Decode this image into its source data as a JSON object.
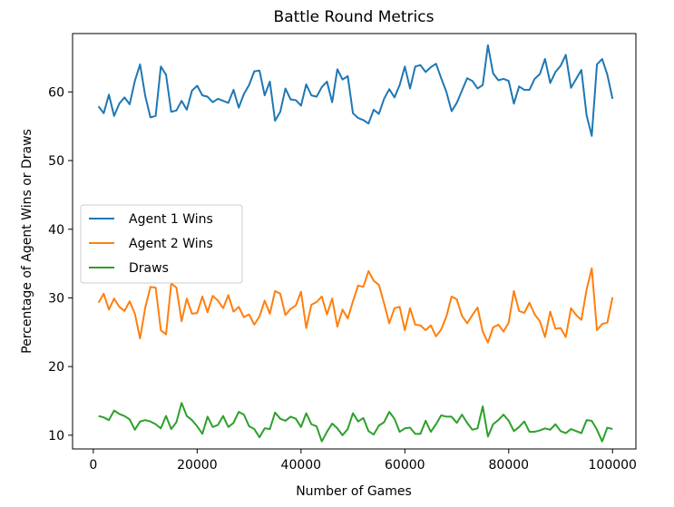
{
  "chart_data": {
    "type": "line",
    "title": "Battle Round Metrics",
    "xlabel": "Number of Games",
    "ylabel": "Percentage of Agent Wins or Draws",
    "xlim": [
      -4000,
      104500
    ],
    "ylim": [
      8,
      68.5
    ],
    "xticks": [
      0,
      20000,
      40000,
      60000,
      80000,
      100000
    ],
    "yticks": [
      10,
      20,
      30,
      40,
      50,
      60
    ],
    "grid": false,
    "legend_position": "center-left",
    "x": [
      1000,
      2000,
      3000,
      4000,
      5000,
      6000,
      7000,
      8000,
      9000,
      10000,
      11000,
      12000,
      13000,
      14000,
      15000,
      16000,
      17000,
      18000,
      19000,
      20000,
      21000,
      22000,
      23000,
      24000,
      25000,
      26000,
      27000,
      28000,
      29000,
      30000,
      31000,
      32000,
      33000,
      34000,
      35000,
      36000,
      37000,
      38000,
      39000,
      40000,
      41000,
      42000,
      43000,
      44000,
      45000,
      46000,
      47000,
      48000,
      49000,
      50000,
      51000,
      52000,
      53000,
      54000,
      55000,
      56000,
      57000,
      58000,
      59000,
      60000,
      61000,
      62000,
      63000,
      64000,
      65000,
      66000,
      67000,
      68000,
      69000,
      70000,
      71000,
      72000,
      73000,
      74000,
      75000,
      76000,
      77000,
      78000,
      79000,
      80000,
      81000,
      82000,
      83000,
      84000,
      85000,
      86000,
      87000,
      88000,
      89000,
      90000,
      91000,
      92000,
      93000,
      94000,
      95000,
      96000,
      97000,
      98000,
      99000,
      100000
    ],
    "series": [
      {
        "name": "Agent 1 Wins",
        "color": "#1f77b4",
        "values": [
          57.9,
          56.9,
          59.6,
          56.5,
          58.3,
          59.2,
          58.2,
          61.6,
          64.0,
          59.4,
          56.3,
          56.5,
          63.7,
          62.5,
          57.1,
          57.3,
          58.7,
          57.4,
          60.2,
          60.9,
          59.5,
          59.3,
          58.5,
          59.0,
          58.7,
          58.4,
          60.3,
          57.7,
          59.7,
          61.0,
          63.0,
          63.1,
          59.5,
          61.5,
          55.8,
          57.1,
          60.5,
          58.9,
          58.8,
          58.0,
          61.1,
          59.5,
          59.3,
          60.7,
          61.5,
          58.5,
          63.3,
          61.8,
          62.3,
          56.9,
          56.2,
          55.9,
          55.4,
          57.4,
          56.8,
          59.0,
          60.4,
          59.2,
          61.0,
          63.7,
          60.5,
          63.7,
          63.9,
          62.9,
          63.6,
          64.1,
          62.0,
          60.0,
          57.2,
          58.4,
          60.2,
          62.0,
          61.6,
          60.5,
          61.0,
          66.8,
          62.7,
          61.7,
          61.9,
          61.6,
          58.3,
          60.8,
          60.3,
          60.3,
          61.9,
          62.6,
          64.8,
          61.3,
          62.9,
          63.8,
          65.4,
          60.6,
          61.9,
          63.2,
          56.6,
          53.6,
          64.0,
          64.8,
          62.5,
          59.0
        ]
      },
      {
        "name": "Agent 2 Wins",
        "color": "#ff7f0e",
        "values": [
          29.3,
          30.6,
          28.3,
          29.9,
          28.7,
          28.1,
          29.5,
          27.7,
          24.1,
          28.6,
          31.6,
          31.5,
          25.3,
          24.7,
          32.1,
          31.5,
          26.6,
          29.9,
          27.7,
          27.8,
          30.2,
          27.9,
          30.3,
          29.6,
          28.5,
          30.4,
          28.0,
          28.7,
          27.2,
          27.6,
          26.1,
          27.3,
          29.6,
          27.7,
          31.0,
          30.6,
          27.5,
          28.4,
          28.9,
          30.9,
          25.6,
          29.0,
          29.4,
          30.2,
          27.6,
          29.9,
          25.8,
          28.3,
          27.0,
          29.5,
          31.8,
          31.6,
          33.9,
          32.5,
          31.9,
          29.2,
          26.3,
          28.5,
          28.7,
          25.3,
          28.5,
          26.1,
          26.0,
          25.3,
          26.0,
          24.4,
          25.4,
          27.3,
          30.2,
          29.8,
          27.4,
          26.3,
          27.5,
          28.6,
          25.1,
          23.5,
          25.7,
          26.1,
          25.1,
          26.4,
          31.0,
          28.1,
          27.8,
          29.3,
          27.6,
          26.6,
          24.3,
          28.0,
          25.5,
          25.6,
          24.3,
          28.5,
          27.5,
          26.8,
          31.2,
          34.3,
          25.3,
          26.2,
          26.4,
          30.1
        ]
      },
      {
        "name": "Draws",
        "color": "#2ca02c",
        "values": [
          12.8,
          12.6,
          12.2,
          13.6,
          13.1,
          12.8,
          12.3,
          10.8,
          12.0,
          12.2,
          12.0,
          11.6,
          11.0,
          12.8,
          10.9,
          11.9,
          14.7,
          12.8,
          12.2,
          11.3,
          10.2,
          12.7,
          11.2,
          11.5,
          12.8,
          11.2,
          11.8,
          13.4,
          13.0,
          11.3,
          10.9,
          9.7,
          11.0,
          10.9,
          13.3,
          12.4,
          12.1,
          12.7,
          12.4,
          11.2,
          13.2,
          11.6,
          11.3,
          9.1,
          10.5,
          11.7,
          11.0,
          10.0,
          10.9,
          13.2,
          12.0,
          12.5,
          10.6,
          10.1,
          11.4,
          11.9,
          13.4,
          12.4,
          10.5,
          11.0,
          11.1,
          10.2,
          10.2,
          12.1,
          10.5,
          11.6,
          12.9,
          12.7,
          12.7,
          11.8,
          13.0,
          11.8,
          10.8,
          11.0,
          14.2,
          9.8,
          11.6,
          12.2,
          13.0,
          12.1,
          10.6,
          11.2,
          12.0,
          10.5,
          10.5,
          10.7,
          11.0,
          10.8,
          11.6,
          10.6,
          10.3,
          10.9,
          10.6,
          10.3,
          12.2,
          12.1,
          10.8,
          9.1,
          11.1,
          10.9
        ]
      }
    ]
  }
}
